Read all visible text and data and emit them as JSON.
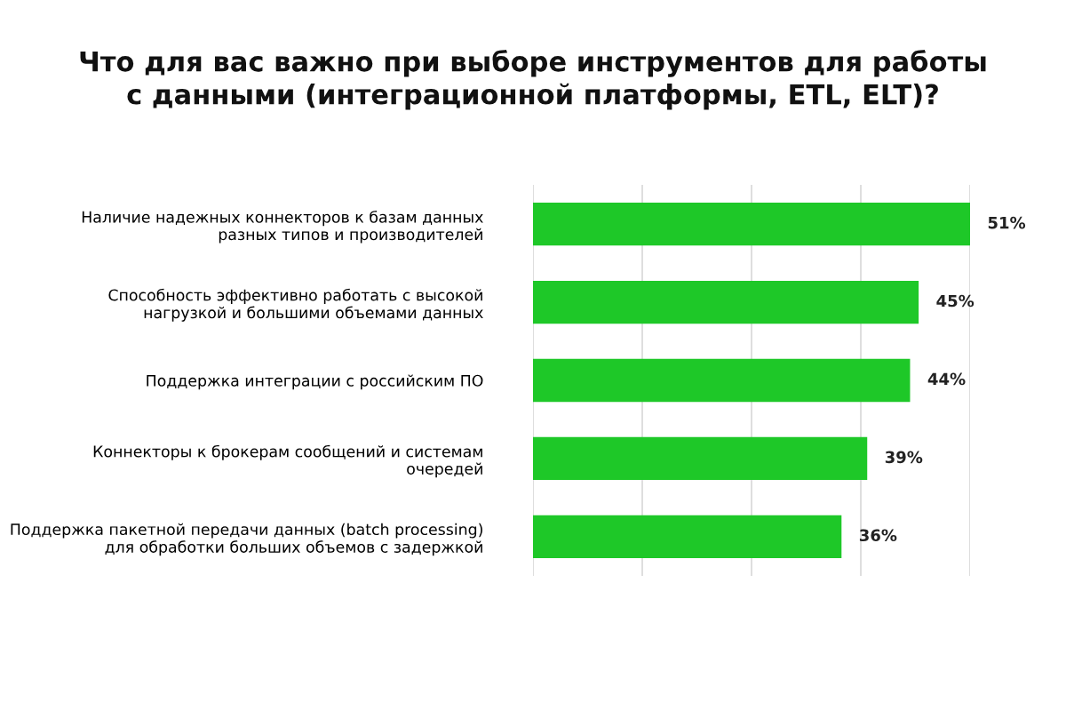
{
  "chart_data": {
    "type": "bar",
    "orientation": "horizontal",
    "title": "Что для вас важно при выборе инструментов для работы\nс данными (интеграционной платформы, ETL, ELT)?",
    "categories": [
      "Наличие надежных коннекторов к базам данных\nразных типов и производителей",
      "Способность эффективно работать с высокой\nнагрузкой и большими объемами данных",
      "Поддержка интеграции с российским ПО",
      "Коннекторы к брокерам сообщений и системам\nочередей",
      "Поддержка пакетной передачи данных (batch processing)\nдля обработки больших объемов с задержкой"
    ],
    "values": [
      51,
      45,
      44,
      39,
      36
    ],
    "value_labels": [
      "51%",
      "45%",
      "44%",
      "39%",
      "36%"
    ],
    "color": "#1ec828",
    "xlim": [
      0,
      51
    ],
    "xticks": [
      {
        "value": 0,
        "label": null
      },
      {
        "value": 12.75,
        "label": null
      },
      {
        "value": 25.5,
        "label": null
      },
      {
        "value": 38.25,
        "label": null
      },
      {
        "value": 51,
        "label": null
      }
    ],
    "grid": "x"
  }
}
